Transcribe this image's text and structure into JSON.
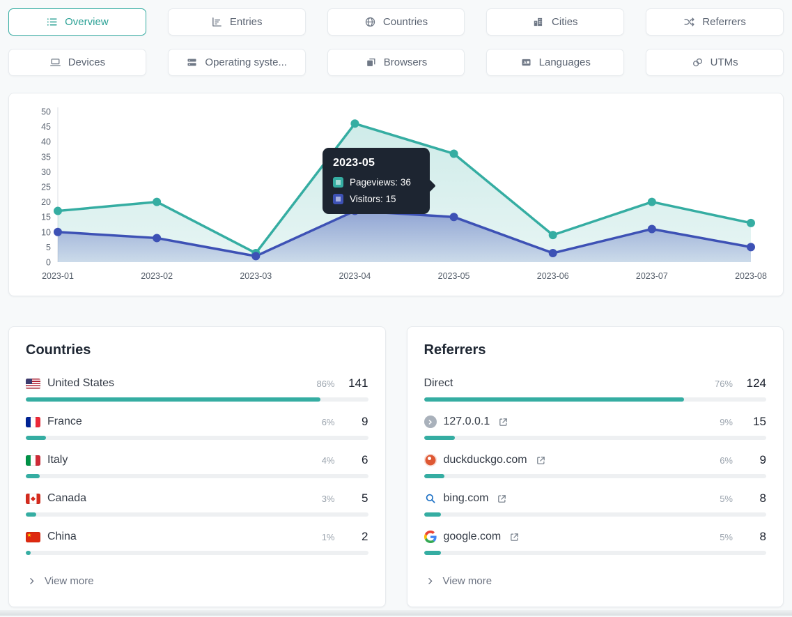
{
  "accent": {
    "teal": "#35ada2",
    "indigo": "#3d51b5",
    "tooltip_bg": "#1d2531"
  },
  "tabs": [
    {
      "label": "Overview",
      "icon": "list-icon",
      "active": true
    },
    {
      "label": "Entries",
      "icon": "bar-chart-icon",
      "active": false
    },
    {
      "label": "Countries",
      "icon": "globe-icon",
      "active": false
    },
    {
      "label": "Cities",
      "icon": "buildings-icon",
      "active": false
    },
    {
      "label": "Referrers",
      "icon": "shuffle-icon",
      "active": false
    },
    {
      "label": "Devices",
      "icon": "laptop-icon",
      "active": false
    },
    {
      "label": "Operating syste...",
      "icon": "server-icon",
      "active": false
    },
    {
      "label": "Browsers",
      "icon": "browser-windows-icon",
      "active": false
    },
    {
      "label": "Languages",
      "icon": "language-icon",
      "active": false
    },
    {
      "label": "UTMs",
      "icon": "link-icon",
      "active": false
    }
  ],
  "chart_data": {
    "type": "area",
    "x": [
      "2023-01",
      "2023-02",
      "2023-03",
      "2023-04",
      "2023-05",
      "2023-06",
      "2023-07",
      "2023-08"
    ],
    "series": [
      {
        "name": "Pageviews",
        "color": "#35ada2",
        "values": [
          17,
          20,
          3,
          46,
          36,
          9,
          20,
          13
        ]
      },
      {
        "name": "Visitors",
        "color": "#3d51b5",
        "values": [
          10,
          8,
          2,
          17,
          15,
          3,
          11,
          5
        ]
      }
    ],
    "ylim": [
      0,
      50
    ],
    "ytick_step": 5,
    "grid": false,
    "legend": "none",
    "tooltip": {
      "title": "2023-05",
      "x_index": 4,
      "entries": [
        {
          "label": "Pageviews",
          "value": "36"
        },
        {
          "label": "Visitors",
          "value": "15"
        }
      ]
    }
  },
  "panels": [
    {
      "title": "Countries",
      "view_more": "View more",
      "rows": [
        {
          "name": "United States",
          "icon": "us-flag",
          "pct": "86%",
          "count": "141",
          "bar": 86
        },
        {
          "name": "France",
          "icon": "france-flag",
          "pct": "6%",
          "count": "9",
          "bar": 6
        },
        {
          "name": "Italy",
          "icon": "italy-flag",
          "pct": "4%",
          "count": "6",
          "bar": 4
        },
        {
          "name": "Canada",
          "icon": "canada-flag",
          "pct": "3%",
          "count": "5",
          "bar": 3
        },
        {
          "name": "China",
          "icon": "china-flag",
          "pct": "1%",
          "count": "2",
          "bar": 1
        }
      ]
    },
    {
      "title": "Referrers",
      "view_more": "View more",
      "rows": [
        {
          "name": "Direct",
          "icon": "none",
          "pct": "76%",
          "count": "124",
          "bar": 76,
          "external_link": false
        },
        {
          "name": "127.0.0.1",
          "icon": "chevron-circle",
          "pct": "9%",
          "count": "15",
          "bar": 9,
          "external_link": true
        },
        {
          "name": "duckduckgo.com",
          "icon": "duckduckgo-favicon",
          "pct": "6%",
          "count": "9",
          "bar": 6,
          "external_link": true
        },
        {
          "name": "bing.com",
          "icon": "bing-favicon",
          "pct": "5%",
          "count": "8",
          "bar": 5,
          "external_link": true
        },
        {
          "name": "google.com",
          "icon": "google-favicon",
          "pct": "5%",
          "count": "8",
          "bar": 5,
          "external_link": true
        }
      ]
    }
  ]
}
